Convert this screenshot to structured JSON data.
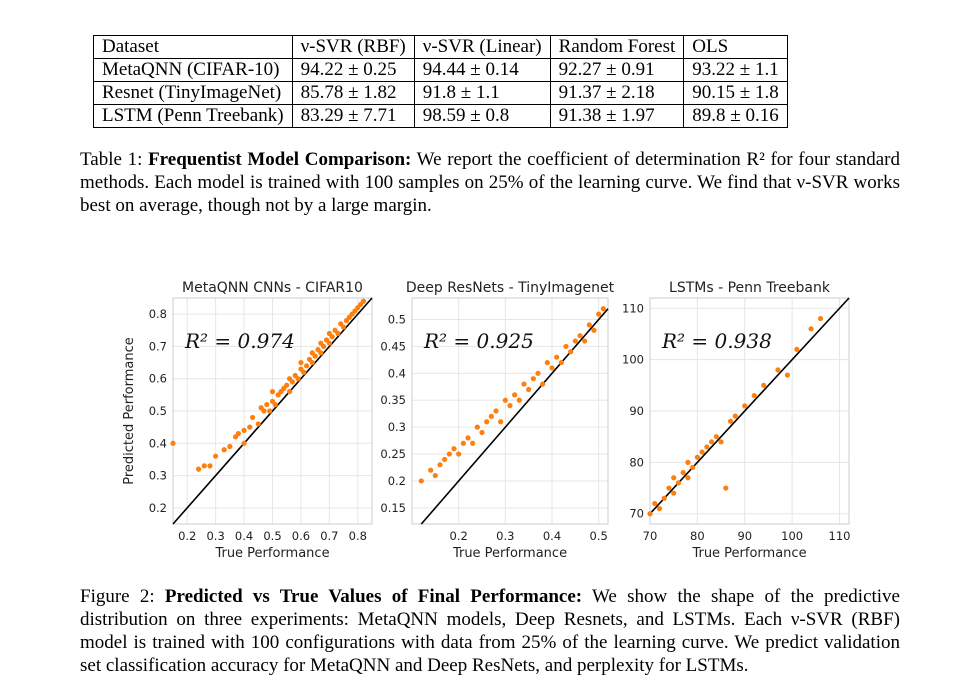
{
  "table": {
    "headers": [
      "Dataset",
      "ν-SVR (RBF)",
      "ν-SVR (Linear)",
      "Random Forest",
      "OLS"
    ],
    "rows": [
      [
        "MetaQNN (CIFAR-10)",
        "94.22 ± 0.25",
        "94.44 ± 0.14",
        "92.27 ± 0.91",
        "93.22 ± 1.1"
      ],
      [
        "Resnet (TinyImageNet)",
        "85.78 ± 1.82",
        "91.8 ± 1.1",
        "91.37 ± 2.18",
        "90.15 ± 1.8"
      ],
      [
        "LSTM (Penn Treebank)",
        "83.29 ± 7.71",
        "98.59 ± 0.8",
        "91.38 ± 1.97",
        "89.8 ± 0.16"
      ]
    ]
  },
  "table_caption": {
    "prefix": "Table 1: ",
    "title": "Frequentist Model Comparison:",
    "body": " We report the coefficient of determination R² for four standard methods. Each model is trained with 100 samples on 25% of the learning curve. We find that ν-SVR works best on average, though not by a large margin."
  },
  "figure_caption": {
    "prefix": "Figure 2: ",
    "title": "Predicted vs True Values of Final Performance:",
    "body": " We show the shape of the predictive distribution on three experiments: MetaQNN models, Deep Resnets, and LSTMs. Each ν-SVR (RBF) model is trained with 100 configurations with data from 25% of the learning curve. We predict validation set classification accuracy for MetaQNN and Deep ResNets, and perplexity for LSTMs."
  },
  "colors": {
    "points": "#ff7f0e",
    "line": "#000000",
    "grid": "#e6e6e6"
  },
  "chart_data": [
    {
      "type": "scatter",
      "title": "MetaQNN CNNs - CIFAR10",
      "xlabel": "True Performance",
      "ylabel": "Predicted Performance",
      "annotation": "R² = 0.974",
      "xlim": [
        0.15,
        0.85
      ],
      "ylim": [
        0.15,
        0.85
      ],
      "xticks": [
        0.2,
        0.3,
        0.4,
        0.5,
        0.6,
        0.7,
        0.8
      ],
      "yticks": [
        0.2,
        0.3,
        0.4,
        0.5,
        0.6,
        0.7,
        0.8
      ],
      "points": [
        [
          0.15,
          0.4
        ],
        [
          0.24,
          0.32
        ],
        [
          0.26,
          0.33
        ],
        [
          0.28,
          0.33
        ],
        [
          0.3,
          0.36
        ],
        [
          0.33,
          0.38
        ],
        [
          0.35,
          0.39
        ],
        [
          0.37,
          0.42
        ],
        [
          0.38,
          0.43
        ],
        [
          0.4,
          0.44
        ],
        [
          0.4,
          0.4
        ],
        [
          0.42,
          0.45
        ],
        [
          0.43,
          0.48
        ],
        [
          0.45,
          0.46
        ],
        [
          0.46,
          0.51
        ],
        [
          0.47,
          0.5
        ],
        [
          0.48,
          0.52
        ],
        [
          0.49,
          0.5
        ],
        [
          0.5,
          0.53
        ],
        [
          0.5,
          0.56
        ],
        [
          0.51,
          0.52
        ],
        [
          0.52,
          0.55
        ],
        [
          0.53,
          0.56
        ],
        [
          0.54,
          0.57
        ],
        [
          0.55,
          0.58
        ],
        [
          0.56,
          0.56
        ],
        [
          0.56,
          0.6
        ],
        [
          0.57,
          0.59
        ],
        [
          0.58,
          0.61
        ],
        [
          0.59,
          0.6
        ],
        [
          0.6,
          0.63
        ],
        [
          0.6,
          0.65
        ],
        [
          0.61,
          0.62
        ],
        [
          0.62,
          0.64
        ],
        [
          0.63,
          0.66
        ],
        [
          0.64,
          0.65
        ],
        [
          0.64,
          0.68
        ],
        [
          0.65,
          0.67
        ],
        [
          0.66,
          0.69
        ],
        [
          0.67,
          0.68
        ],
        [
          0.67,
          0.71
        ],
        [
          0.68,
          0.7
        ],
        [
          0.69,
          0.72
        ],
        [
          0.7,
          0.71
        ],
        [
          0.7,
          0.74
        ],
        [
          0.71,
          0.73
        ],
        [
          0.72,
          0.75
        ],
        [
          0.73,
          0.74
        ],
        [
          0.74,
          0.77
        ],
        [
          0.75,
          0.76
        ],
        [
          0.76,
          0.78
        ],
        [
          0.77,
          0.79
        ],
        [
          0.78,
          0.8
        ],
        [
          0.79,
          0.81
        ],
        [
          0.8,
          0.82
        ],
        [
          0.81,
          0.83
        ],
        [
          0.82,
          0.84
        ]
      ]
    },
    {
      "type": "scatter",
      "title": "Deep ResNets - TinyImagenet",
      "xlabel": "True Performance",
      "ylabel": "",
      "annotation": "R² = 0.925",
      "xlim": [
        0.1,
        0.52
      ],
      "ylim": [
        0.12,
        0.54
      ],
      "xticks": [
        0.2,
        0.3,
        0.4,
        0.5
      ],
      "yticks": [
        0.15,
        0.2,
        0.25,
        0.3,
        0.35,
        0.4,
        0.45,
        0.5
      ],
      "points": [
        [
          0.12,
          0.2
        ],
        [
          0.14,
          0.22
        ],
        [
          0.15,
          0.21
        ],
        [
          0.16,
          0.23
        ],
        [
          0.17,
          0.24
        ],
        [
          0.18,
          0.25
        ],
        [
          0.19,
          0.26
        ],
        [
          0.2,
          0.25
        ],
        [
          0.21,
          0.27
        ],
        [
          0.22,
          0.28
        ],
        [
          0.23,
          0.27
        ],
        [
          0.24,
          0.3
        ],
        [
          0.25,
          0.29
        ],
        [
          0.26,
          0.31
        ],
        [
          0.27,
          0.32
        ],
        [
          0.28,
          0.33
        ],
        [
          0.29,
          0.31
        ],
        [
          0.3,
          0.35
        ],
        [
          0.31,
          0.34
        ],
        [
          0.32,
          0.36
        ],
        [
          0.33,
          0.35
        ],
        [
          0.34,
          0.38
        ],
        [
          0.35,
          0.37
        ],
        [
          0.36,
          0.39
        ],
        [
          0.37,
          0.4
        ],
        [
          0.38,
          0.38
        ],
        [
          0.39,
          0.42
        ],
        [
          0.4,
          0.41
        ],
        [
          0.41,
          0.43
        ],
        [
          0.42,
          0.42
        ],
        [
          0.43,
          0.45
        ],
        [
          0.44,
          0.44
        ],
        [
          0.45,
          0.46
        ],
        [
          0.46,
          0.47
        ],
        [
          0.47,
          0.46
        ],
        [
          0.48,
          0.49
        ],
        [
          0.49,
          0.48
        ],
        [
          0.5,
          0.51
        ],
        [
          0.51,
          0.52
        ]
      ]
    },
    {
      "type": "scatter",
      "title": "LSTMs - Penn Treebank",
      "xlabel": "True Performance",
      "ylabel": "",
      "annotation": "R² = 0.938",
      "xlim": [
        70,
        112
      ],
      "ylim": [
        68,
        112
      ],
      "xticks": [
        70,
        80,
        90,
        100,
        110
      ],
      "yticks": [
        70,
        80,
        90,
        100,
        110
      ],
      "points": [
        [
          70,
          70
        ],
        [
          71,
          72
        ],
        [
          72,
          71
        ],
        [
          73,
          73
        ],
        [
          74,
          75
        ],
        [
          75,
          74
        ],
        [
          75,
          77
        ],
        [
          76,
          76
        ],
        [
          77,
          78
        ],
        [
          78,
          77
        ],
        [
          78,
          80
        ],
        [
          79,
          79
        ],
        [
          80,
          81
        ],
        [
          81,
          82
        ],
        [
          82,
          83
        ],
        [
          83,
          84
        ],
        [
          84,
          85
        ],
        [
          85,
          84
        ],
        [
          86,
          75
        ],
        [
          87,
          88
        ],
        [
          88,
          89
        ],
        [
          90,
          91
        ],
        [
          92,
          93
        ],
        [
          94,
          95
        ],
        [
          97,
          98
        ],
        [
          99,
          97
        ],
        [
          101,
          102
        ],
        [
          104,
          106
        ],
        [
          106,
          108
        ]
      ]
    }
  ]
}
